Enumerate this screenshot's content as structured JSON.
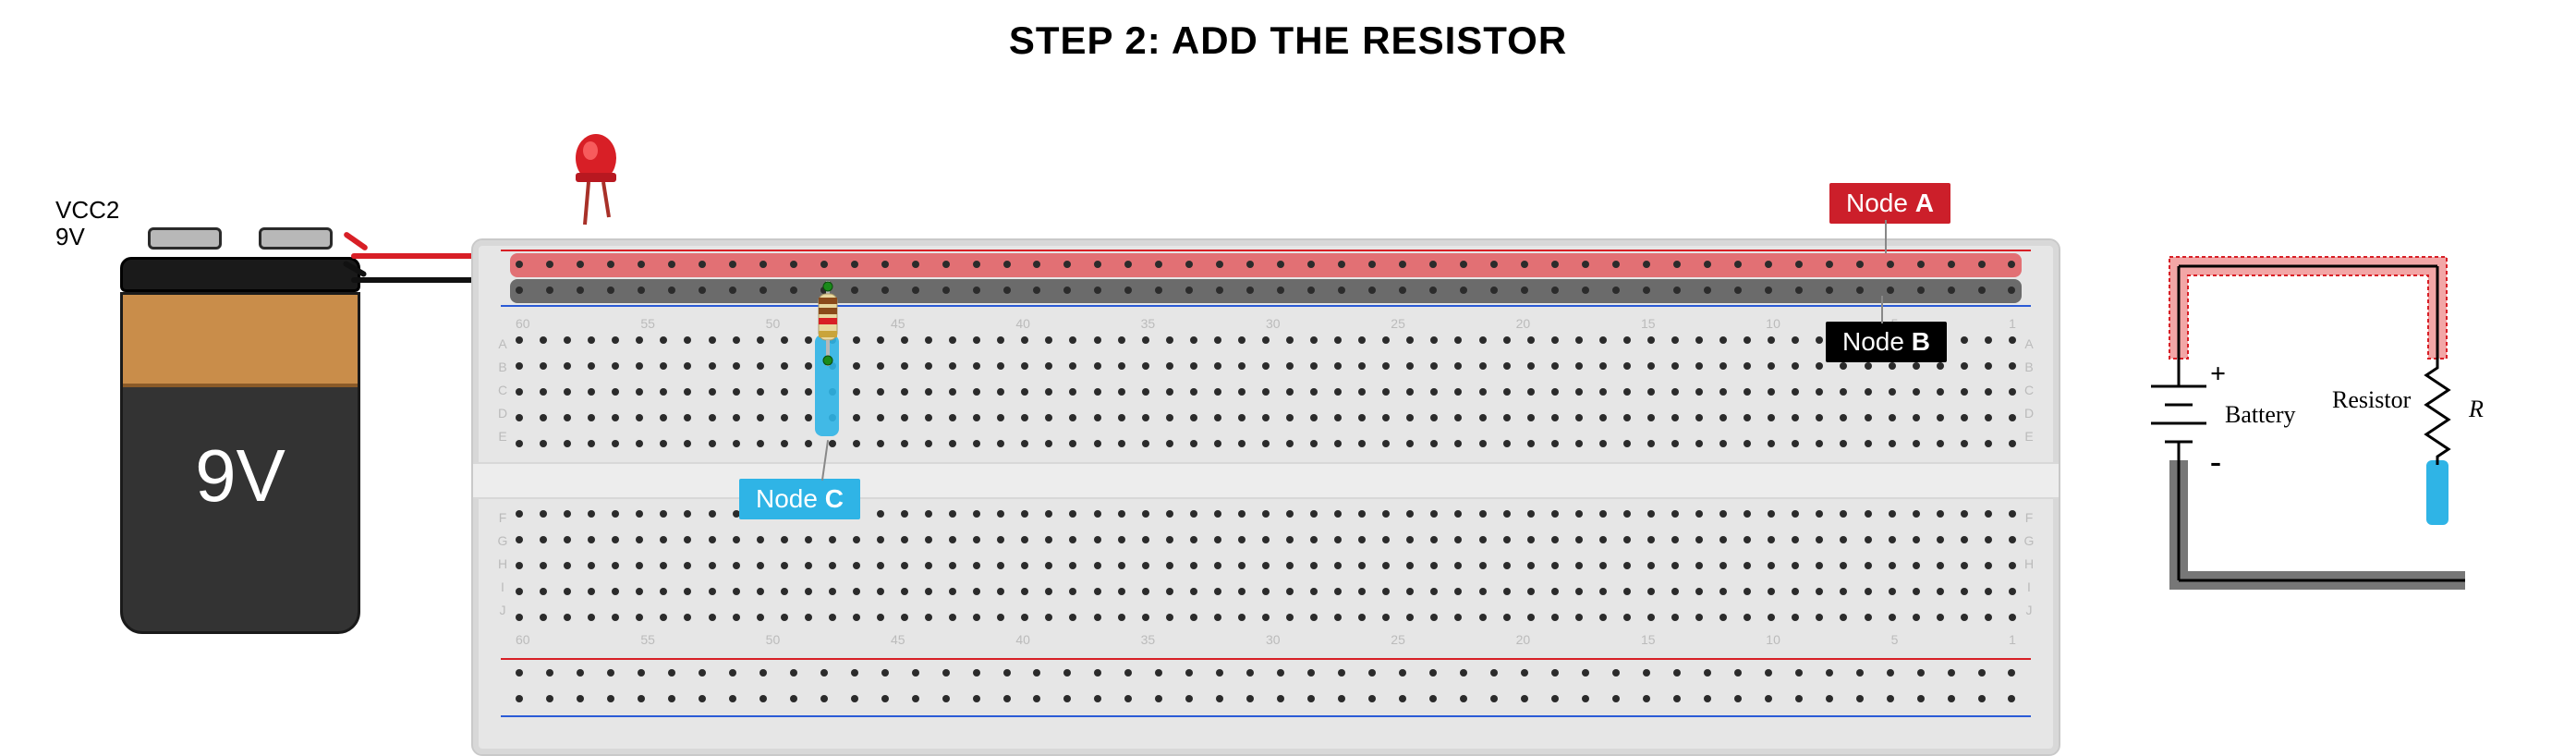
{
  "title": "STEP 2: ADD THE RESISTOR",
  "battery": {
    "label_line1": "VCC2",
    "label_line2": "9V",
    "body_text": "9V",
    "copper_color": "#c98d4a",
    "body_color": "#333333",
    "cap_color": "#1a1a1a"
  },
  "wires": {
    "red_color": "#d81f26",
    "black_color": "#111111"
  },
  "led": {
    "body_color": "#d81f26",
    "highlight_color": "#ff5a5a"
  },
  "breadboard": {
    "bg_color": "#e6e6e6",
    "rail_red_color": "#d81f26",
    "rail_blue_color": "#2b5bd6",
    "node_a_highlight": "#e05a5f",
    "node_b_highlight": "#555555",
    "node_c_highlight": "#2fb4e6",
    "hole_color": "#2b2b2b",
    "columns_per_row": 63,
    "rail_holes_per_row": 50,
    "column_number_step": 5,
    "column_number_max": 60,
    "row_letters_top": [
      "A",
      "B",
      "C",
      "D",
      "E"
    ],
    "row_letters_bottom": [
      "F",
      "G",
      "H",
      "I",
      "J"
    ]
  },
  "resistor": {
    "body_color": "#e8d8a0",
    "bands": [
      "#8a4a1a",
      "#8a4a1a",
      "#d81f26",
      "#c9a43a"
    ],
    "lead_color": "#b8b8b8"
  },
  "nodes": {
    "a": {
      "prefix": "Node ",
      "letter": "A",
      "bg": "#cc1f2a"
    },
    "b": {
      "prefix": "Node ",
      "letter": "B",
      "bg": "#000000"
    },
    "c": {
      "prefix": "Node ",
      "letter": "C",
      "bg": "#2fb4e6"
    }
  },
  "schematic": {
    "battery_label": "Battery",
    "resistor_label": "Resistor",
    "r_symbol": "R",
    "plus": "+",
    "minus": "-",
    "node_a_fill": "#f2a6a6",
    "node_a_stroke": "#d81f26",
    "node_b_fill": "#777777",
    "node_c_fill": "#2fb4e6",
    "wire_color": "#000000"
  }
}
